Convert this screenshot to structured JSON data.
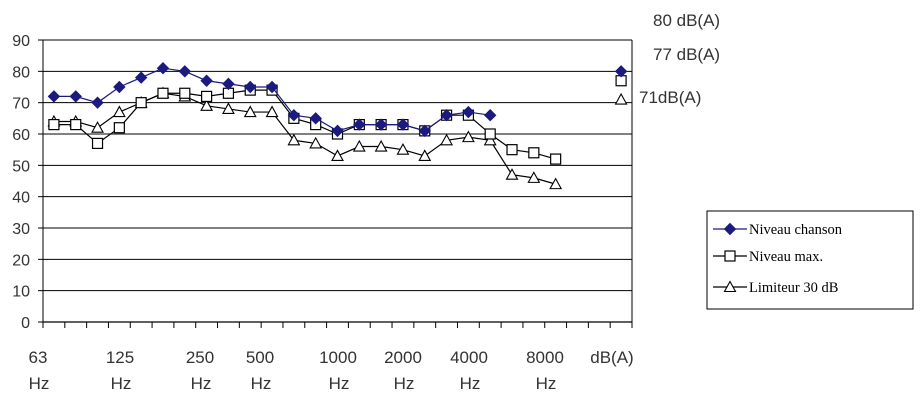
{
  "chart_data": {
    "type": "line",
    "ylim": [
      0,
      90
    ],
    "yticks": [
      "0",
      "10",
      "20",
      "30",
      "40",
      "50",
      "60",
      "70",
      "80",
      "90"
    ],
    "grid": true,
    "legend_position": "right",
    "x_labels": [
      {
        "top": "63",
        "bottom": "Hz"
      },
      {
        "top": "125",
        "bottom": "Hz"
      },
      {
        "top": "250",
        "bottom": "Hz"
      },
      {
        "top": "500",
        "bottom": "Hz"
      },
      {
        "top": "1000",
        "bottom": "Hz"
      },
      {
        "top": "2000",
        "bottom": "Hz"
      },
      {
        "top": "4000",
        "bottom": "Hz"
      },
      {
        "top": "8000",
        "bottom": "Hz"
      },
      {
        "top": "dB(A)",
        "bottom": ""
      }
    ],
    "series": [
      {
        "name": "Niveau chanson",
        "marker": "diamond",
        "color": "#1a1a80",
        "values": [
          72,
          72,
          70,
          75,
          78,
          81,
          80,
          77,
          76,
          75,
          75,
          66,
          65,
          61,
          63,
          63,
          63,
          61,
          66,
          67,
          66,
          null,
          null,
          null
        ],
        "total_value": 80,
        "total_label": "80 dB(A)"
      },
      {
        "name": "Niveau max.",
        "marker": "square",
        "color": "#000000",
        "values": [
          63,
          63,
          57,
          62,
          70,
          73,
          73,
          72,
          73,
          74,
          74,
          65,
          63,
          60,
          63,
          63,
          63,
          61,
          66,
          66,
          60,
          55,
          54,
          52
        ],
        "total_value": 77,
        "total_label": "77 dB(A)"
      },
      {
        "name": "Limiteur 30 dB",
        "marker": "triangle",
        "color": "#000000",
        "values": [
          64,
          64,
          62,
          67,
          70,
          73,
          72,
          69,
          68,
          67,
          67,
          58,
          57,
          53,
          56,
          56,
          55,
          53,
          58,
          59,
          58,
          47,
          46,
          44
        ],
        "total_value": 71,
        "total_label": "71dB(A)"
      }
    ]
  }
}
